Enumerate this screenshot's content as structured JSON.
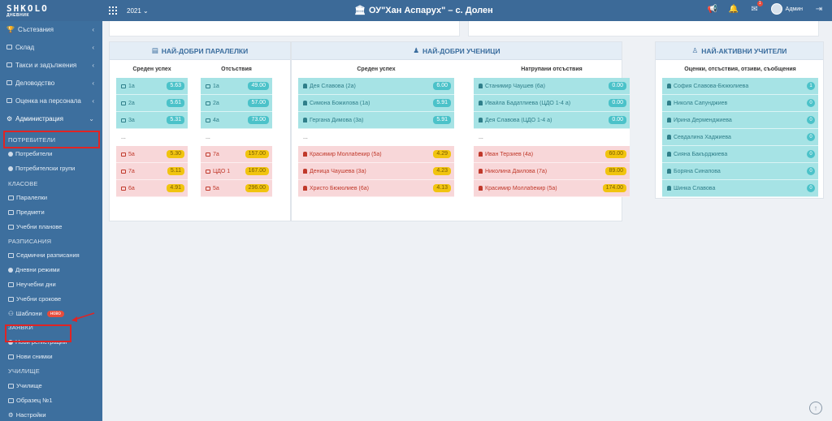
{
  "logo": {
    "line1": "SHKOLO",
    "line2": "ДНЕВНИК"
  },
  "header": {
    "year": "2021",
    "school": "ОУ\"Хан Аспарух\" – с. Долен",
    "notif_count": "1",
    "user": "Админ"
  },
  "sidebar": {
    "top": [
      "Състезания",
      "Склад",
      "Такси и задължения",
      "Деловодство",
      "Оценка на персонала",
      "Администрация"
    ],
    "sec_users": "ПОТРЕБИТЕЛИ",
    "users": [
      "Потребители",
      "Потребителски групи"
    ],
    "sec_classes": "КЛАСОВЕ",
    "classes": [
      "Паралелки",
      "Предмети",
      "Учебни планове"
    ],
    "sec_sched": "РАЗПИСАНИЯ",
    "sched": [
      "Седмични разписания",
      "Дневни режими",
      "Неучебни дни",
      "Учебни срокове",
      "Шаблони"
    ],
    "new_badge": "ново",
    "sec_req": "ЗАЯВКИ",
    "req": [
      "Нови регистрации",
      "Нови снимки"
    ],
    "sec_school": "УЧИЛИЩЕ",
    "school": [
      "Училище",
      "Образец №1",
      "Настройки"
    ]
  },
  "classes_panel": {
    "title": "НАЙ-ДОБРИ ПАРАЛЕЛКИ",
    "col1_title": "Среден успех",
    "col2_title": "Отсъствия",
    "col1": [
      {
        "n": "1а",
        "v": "5.63",
        "t": "g"
      },
      {
        "n": "2а",
        "v": "5.61",
        "t": "g"
      },
      {
        "n": "3а",
        "v": "5.31",
        "t": "g"
      },
      {
        "n": "...",
        "v": "",
        "t": "w"
      },
      {
        "n": "5а",
        "v": "5.30",
        "t": "r"
      },
      {
        "n": "7а",
        "v": "5.11",
        "t": "r"
      },
      {
        "n": "6а",
        "v": "4.91",
        "t": "r"
      }
    ],
    "col2": [
      {
        "n": "1а",
        "v": "49.00",
        "t": "g"
      },
      {
        "n": "2а",
        "v": "57.00",
        "t": "g"
      },
      {
        "n": "4а",
        "v": "73.00",
        "t": "g"
      },
      {
        "n": "...",
        "v": "",
        "t": "w"
      },
      {
        "n": "7а",
        "v": "157.00",
        "t": "r"
      },
      {
        "n": "ЦДО 1",
        "v": "167.00",
        "t": "r"
      },
      {
        "n": "5а",
        "v": "296.00",
        "t": "r"
      }
    ]
  },
  "students_panel": {
    "title": "НАЙ-ДОБРИ УЧЕНИЦИ",
    "col1_title": "Среден успех",
    "col2_title": "Натрупани отсъствия",
    "col1": [
      {
        "n": "Дея Славова (2а)",
        "v": "6.00",
        "t": "g"
      },
      {
        "n": "Симона Божилова (1а)",
        "v": "5.91",
        "t": "g"
      },
      {
        "n": "Гергана Димова (3а)",
        "v": "5.91",
        "t": "g"
      },
      {
        "n": "...",
        "v": "",
        "t": "w"
      },
      {
        "n": "Красимир Моллабекир (5а)",
        "v": "4.29",
        "t": "r"
      },
      {
        "n": "Деница Чаушева (3а)",
        "v": "4.23",
        "t": "r"
      },
      {
        "n": "Христо Бюкюлиев (6а)",
        "v": "4.13",
        "t": "r"
      }
    ],
    "col2": [
      {
        "n": "Станимир Чаушев (6а)",
        "v": "0.00",
        "t": "g"
      },
      {
        "n": "Ивайла Бадатлиева (ЦДО 1-4 а)",
        "v": "0.00",
        "t": "g"
      },
      {
        "n": "Дея Славова (ЦДО 1-4 а)",
        "v": "0.00",
        "t": "g"
      },
      {
        "n": "...",
        "v": "",
        "t": "w"
      },
      {
        "n": "Иван Терзиев (4а)",
        "v": "60.00",
        "t": "r"
      },
      {
        "n": "Николина Даилова (7а)",
        "v": "89.00",
        "t": "r"
      },
      {
        "n": "Красимир Моллабекир (5а)",
        "v": "174.00",
        "t": "r"
      }
    ]
  },
  "teachers_panel": {
    "title": "НАЙ-АКТИВНИ УЧИТЕЛИ",
    "col_title": "Оценки, отсъствия, отзиви, съобщения",
    "rows": [
      {
        "n": "София Славова-Бюкюлиева",
        "v": "1"
      },
      {
        "n": "Никола Сапунджиев",
        "v": "0"
      },
      {
        "n": "Ирина Дерменджиева",
        "v": "0"
      },
      {
        "n": "Севдалина Хаджиева",
        "v": "0"
      },
      {
        "n": "Сияна Бакърджиева",
        "v": "0"
      },
      {
        "n": "Боряна Синапова",
        "v": "0"
      },
      {
        "n": "Шинка Славова",
        "v": "0"
      }
    ]
  }
}
